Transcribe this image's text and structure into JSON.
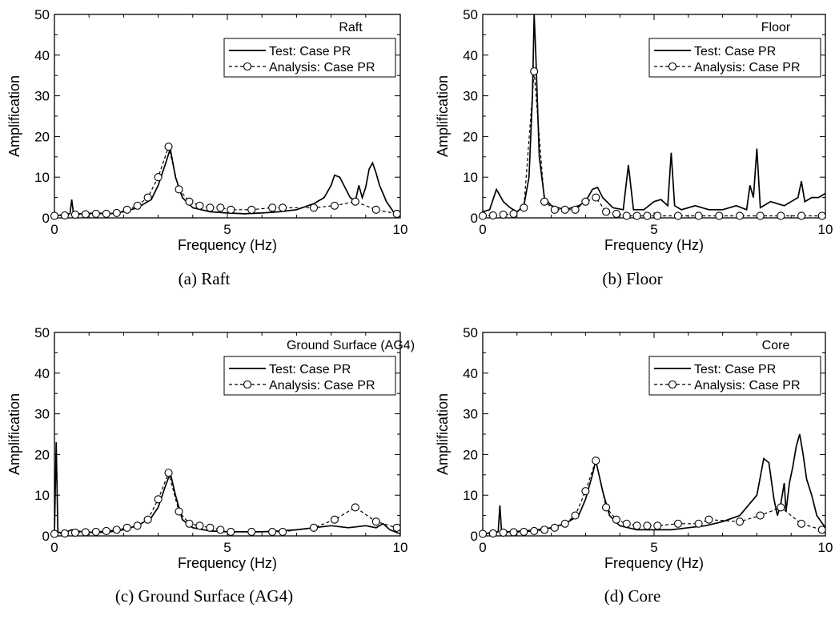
{
  "chart_data": [
    {
      "type": "line",
      "caption": "(a)  Raft",
      "panel_title": "Raft",
      "xlabel": "Frequency (Hz)",
      "ylabel": "Amplification",
      "xlim": [
        0,
        10
      ],
      "ylim": [
        0,
        50
      ],
      "xticks": [
        0,
        5,
        10
      ],
      "yticks": [
        0,
        10,
        20,
        30,
        40,
        50
      ],
      "legend_position": "top-right",
      "series": [
        {
          "name": "Test: Case PR",
          "style": "solid",
          "x": [
            0,
            0.3,
            0.45,
            0.5,
            0.55,
            0.8,
            1.2,
            1.6,
            2.0,
            2.4,
            2.8,
            3.0,
            3.2,
            3.35,
            3.5,
            3.7,
            4.0,
            4.5,
            5.0,
            5.5,
            6.0,
            6.5,
            7.0,
            7.5,
            7.8,
            8.0,
            8.1,
            8.25,
            8.4,
            8.55,
            8.7,
            8.8,
            8.9,
            9.0,
            9.1,
            9.2,
            9.3,
            9.4,
            9.5,
            9.6,
            9.8,
            10.0
          ],
          "y": [
            0.5,
            0.8,
            1.0,
            4.5,
            1.0,
            1.0,
            1.2,
            1.0,
            1.5,
            2.5,
            4.5,
            8.0,
            13.0,
            17.0,
            10.0,
            5.0,
            2.5,
            1.5,
            1.2,
            1.0,
            1.2,
            1.5,
            2.0,
            3.5,
            5.0,
            8.0,
            10.5,
            10.0,
            7.5,
            5.0,
            4.0,
            8.0,
            5.0,
            7.5,
            12.0,
            13.5,
            11.0,
            8.0,
            6.0,
            4.0,
            1.5,
            0.5
          ]
        },
        {
          "name": "Analysis: Case PR",
          "style": "dashed-circle",
          "x": [
            0,
            0.3,
            0.6,
            0.9,
            1.2,
            1.5,
            1.8,
            2.1,
            2.4,
            2.7,
            3.0,
            3.3,
            3.6,
            3.9,
            4.2,
            4.5,
            4.8,
            5.1,
            5.7,
            6.3,
            6.6,
            7.5,
            8.1,
            8.7,
            9.3,
            9.9
          ],
          "y": [
            0.5,
            0.6,
            0.8,
            0.9,
            1.0,
            1.0,
            1.2,
            2.0,
            3.0,
            5.0,
            10.0,
            17.5,
            7.0,
            4.0,
            3.0,
            2.5,
            2.5,
            2.0,
            2.0,
            2.5,
            2.5,
            2.5,
            3.0,
            4.0,
            2.0,
            1.0
          ]
        }
      ]
    },
    {
      "type": "line",
      "caption": "(b)  Floor",
      "panel_title": "Floor",
      "xlabel": "Frequency (Hz)",
      "ylabel": "Amplification",
      "xlim": [
        0,
        10
      ],
      "ylim": [
        0,
        50
      ],
      "xticks": [
        0,
        5,
        10
      ],
      "yticks": [
        0,
        10,
        20,
        30,
        40,
        50
      ],
      "legend_position": "top-right",
      "series": [
        {
          "name": "Test: Case PR",
          "style": "solid",
          "x": [
            0,
            0.2,
            0.4,
            0.6,
            0.8,
            1.0,
            1.2,
            1.35,
            1.45,
            1.5,
            1.55,
            1.65,
            1.8,
            2.0,
            2.4,
            2.8,
            3.0,
            3.2,
            3.35,
            3.5,
            3.8,
            4.1,
            4.25,
            4.4,
            4.7,
            5.0,
            5.2,
            5.4,
            5.5,
            5.6,
            5.8,
            6.2,
            6.6,
            7.0,
            7.4,
            7.7,
            7.8,
            7.9,
            8.0,
            8.1,
            8.4,
            8.8,
            9.2,
            9.3,
            9.4,
            9.6,
            9.8,
            10.0
          ],
          "y": [
            1.5,
            2.0,
            7.0,
            4.0,
            2.5,
            1.5,
            3.0,
            10.0,
            30.0,
            50.0,
            40.0,
            15.0,
            5.0,
            3.0,
            2.0,
            3.0,
            4.0,
            7.0,
            7.5,
            5.0,
            2.5,
            2.0,
            13.0,
            2.0,
            2.0,
            4.0,
            4.5,
            3.0,
            16.0,
            3.0,
            2.0,
            3.0,
            2.0,
            2.0,
            3.0,
            2.0,
            8.0,
            5.0,
            17.0,
            2.5,
            4.0,
            3.0,
            5.0,
            9.0,
            4.0,
            5.0,
            5.0,
            6.0
          ]
        },
        {
          "name": "Analysis: Case PR",
          "style": "dashed-circle",
          "x": [
            0,
            0.3,
            0.6,
            0.9,
            1.2,
            1.5,
            1.8,
            2.1,
            2.4,
            2.7,
            3.0,
            3.3,
            3.6,
            3.9,
            4.2,
            4.5,
            4.8,
            5.1,
            5.7,
            6.3,
            6.9,
            7.5,
            8.1,
            8.7,
            9.3,
            9.9
          ],
          "y": [
            0.5,
            0.6,
            0.8,
            1.0,
            2.5,
            36.0,
            4.0,
            2.0,
            2.0,
            2.0,
            4.0,
            5.0,
            1.5,
            1.0,
            0.5,
            0.5,
            0.5,
            0.5,
            0.5,
            0.5,
            0.5,
            0.5,
            0.5,
            0.5,
            0.5,
            0.5
          ]
        }
      ]
    },
    {
      "type": "line",
      "caption": "(c)  Ground Surface (AG4)",
      "panel_title": "Ground Surface (AG4)",
      "xlabel": "Frequency (Hz)",
      "ylabel": "Amplification",
      "xlim": [
        0,
        10
      ],
      "ylim": [
        0,
        50
      ],
      "xticks": [
        0,
        5,
        10
      ],
      "yticks": [
        0,
        10,
        20,
        30,
        40,
        50
      ],
      "legend_position": "top-right",
      "series": [
        {
          "name": "Test: Case PR",
          "style": "solid",
          "x": [
            0,
            0.05,
            0.1,
            0.15,
            0.3,
            0.5,
            0.8,
            1.2,
            1.6,
            2.0,
            2.4,
            2.8,
            3.0,
            3.2,
            3.35,
            3.5,
            3.7,
            4.0,
            4.5,
            5.0,
            5.5,
            6.0,
            6.5,
            7.0,
            7.5,
            8.0,
            8.5,
            9.0,
            9.3,
            9.5,
            9.7,
            10.0
          ],
          "y": [
            0.5,
            23.0,
            1.0,
            0.8,
            0.8,
            1.5,
            1.0,
            0.8,
            1.0,
            1.5,
            2.5,
            4.5,
            7.0,
            12.0,
            15.5,
            10.0,
            4.0,
            2.0,
            1.2,
            1.0,
            1.0,
            1.0,
            1.2,
            1.5,
            2.0,
            2.5,
            2.0,
            2.5,
            2.0,
            3.0,
            1.5,
            0.5
          ]
        },
        {
          "name": "Analysis: Case PR",
          "style": "dashed-circle",
          "x": [
            0,
            0.3,
            0.6,
            0.9,
            1.2,
            1.5,
            1.8,
            2.1,
            2.4,
            2.7,
            3.0,
            3.3,
            3.6,
            3.9,
            4.2,
            4.5,
            4.8,
            5.1,
            5.7,
            6.3,
            6.6,
            7.5,
            8.1,
            8.7,
            9.3,
            9.9
          ],
          "y": [
            0.5,
            0.6,
            0.8,
            0.9,
            1.0,
            1.2,
            1.5,
            2.0,
            2.5,
            4.0,
            9.0,
            15.5,
            6.0,
            3.0,
            2.5,
            2.0,
            1.5,
            1.0,
            1.0,
            1.0,
            1.0,
            2.0,
            4.0,
            7.0,
            3.5,
            2.0
          ]
        }
      ]
    },
    {
      "type": "line",
      "caption": "(d)  Core",
      "panel_title": "Core",
      "xlabel": "Frequency (Hz)",
      "ylabel": "Amplification",
      "xlim": [
        0,
        10
      ],
      "ylim": [
        0,
        50
      ],
      "xticks": [
        0,
        5,
        10
      ],
      "yticks": [
        0,
        10,
        20,
        30,
        40,
        50
      ],
      "legend_position": "top-right",
      "series": [
        {
          "name": "Test: Case PR",
          "style": "solid",
          "x": [
            0,
            0.3,
            0.45,
            0.5,
            0.55,
            0.8,
            1.2,
            1.6,
            2.0,
            2.4,
            2.8,
            3.0,
            3.2,
            3.3,
            3.5,
            3.7,
            4.0,
            4.5,
            5.0,
            5.5,
            6.0,
            6.5,
            7.0,
            7.5,
            7.8,
            8.0,
            8.2,
            8.35,
            8.5,
            8.6,
            8.7,
            8.8,
            8.85,
            8.95,
            9.05,
            9.15,
            9.25,
            9.35,
            9.45,
            9.6,
            9.75,
            10.0
          ],
          "y": [
            0.5,
            0.8,
            1.0,
            7.5,
            1.0,
            1.0,
            1.2,
            1.5,
            2.0,
            3.0,
            5.0,
            9.0,
            15.0,
            18.5,
            11.0,
            5.0,
            2.5,
            1.5,
            1.5,
            1.5,
            2.0,
            2.5,
            3.5,
            5.0,
            8.0,
            10.0,
            19.0,
            18.0,
            9.0,
            5.0,
            8.0,
            13.0,
            6.0,
            13.0,
            17.0,
            22.0,
            25.0,
            20.0,
            14.0,
            10.0,
            5.0,
            2.0
          ]
        },
        {
          "name": "Analysis: Case PR",
          "style": "dashed-circle",
          "x": [
            0,
            0.3,
            0.6,
            0.9,
            1.2,
            1.5,
            1.8,
            2.1,
            2.4,
            2.7,
            3.0,
            3.3,
            3.6,
            3.9,
            4.2,
            4.5,
            4.8,
            5.1,
            5.7,
            6.3,
            6.6,
            7.5,
            8.1,
            8.7,
            9.3,
            9.9
          ],
          "y": [
            0.5,
            0.6,
            0.8,
            0.9,
            1.0,
            1.2,
            1.5,
            2.0,
            3.0,
            5.0,
            11.0,
            18.5,
            7.0,
            4.0,
            3.0,
            2.5,
            2.5,
            2.5,
            3.0,
            3.0,
            4.0,
            3.5,
            5.0,
            7.0,
            3.0,
            1.5
          ]
        }
      ]
    }
  ]
}
